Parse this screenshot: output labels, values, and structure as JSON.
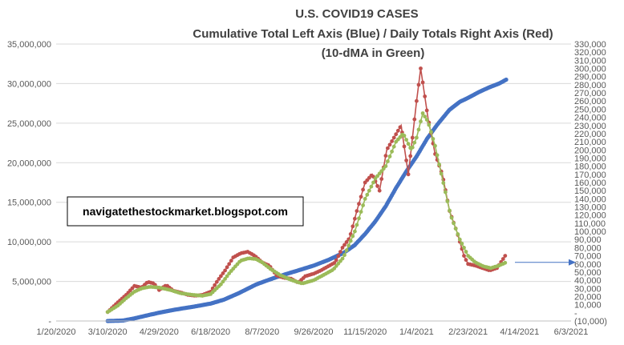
{
  "chart_data": {
    "type": "line",
    "title": "U.S. COVID19 CASES",
    "subtitle": "Cumulative Total Left Axis (Blue) / Daily Totals Right Axis (Red)",
    "subtitle2": "(10-dMA in Green)",
    "annotation": "navigatethestockmarket.blogspot.com",
    "x_ticks": [
      "1/20/2020",
      "3/10/2020",
      "4/29/2020",
      "6/18/2020",
      "8/7/2020",
      "9/26/2020",
      "11/15/2020",
      "1/4/2021",
      "2/23/2021",
      "4/14/2021",
      "6/3/2021"
    ],
    "xlim": [
      "2020-01-20",
      "2021-06-03"
    ],
    "y_left_ticks": [
      "-",
      "5,000,000",
      "10,000,000",
      "15,000,000",
      "20,000,000",
      "25,000,000",
      "30,000,000",
      "35,000,000"
    ],
    "y_left_lim": [
      0,
      35000000
    ],
    "y_right_ticks": [
      "(10,000)",
      "-",
      "10,000",
      "20,000",
      "30,000",
      "40,000",
      "50,000",
      "60,000",
      "70,000",
      "80,000",
      "90,000",
      "100,000",
      "110,000",
      "120,000",
      "130,000",
      "140,000",
      "150,000",
      "160,000",
      "170,000",
      "180,000",
      "190,000",
      "200,000",
      "210,000",
      "220,000",
      "230,000",
      "240,000",
      "250,000",
      "260,000",
      "270,000",
      "280,000",
      "290,000",
      "300,000",
      "310,000",
      "320,000",
      "330,000"
    ],
    "y_right_lim": [
      -10000,
      330000
    ],
    "arrow_level_right_axis": 62000,
    "colors": {
      "cumulative": "#4472C4",
      "daily": "#C0504D",
      "ma10": "#9BBB59",
      "grid": "#D9D9D9",
      "arrow": "#4472C4"
    },
    "series": [
      {
        "name": "Cumulative Total",
        "axis": "left",
        "color": "#4472C4",
        "style": "line-markers",
        "points": [
          [
            "2020-03-10",
            0
          ],
          [
            "2020-03-25",
            60000
          ],
          [
            "2020-04-05",
            330000
          ],
          [
            "2020-04-15",
            640000
          ],
          [
            "2020-04-29",
            1050000
          ],
          [
            "2020-05-15",
            1450000
          ],
          [
            "2020-06-01",
            1800000
          ],
          [
            "2020-06-18",
            2200000
          ],
          [
            "2020-07-01",
            2700000
          ],
          [
            "2020-07-15",
            3500000
          ],
          [
            "2020-08-01",
            4600000
          ],
          [
            "2020-08-07",
            4900000
          ],
          [
            "2020-08-20",
            5500000
          ],
          [
            "2020-09-01",
            6000000
          ],
          [
            "2020-09-15",
            6550000
          ],
          [
            "2020-09-26",
            7000000
          ],
          [
            "2020-10-10",
            7700000
          ],
          [
            "2020-10-25",
            8600000
          ],
          [
            "2020-11-05",
            9600000
          ],
          [
            "2020-11-15",
            11000000
          ],
          [
            "2020-11-25",
            12600000
          ],
          [
            "2020-12-05",
            14500000
          ],
          [
            "2020-12-15",
            16800000
          ],
          [
            "2020-12-25",
            18900000
          ],
          [
            "2021-01-04",
            20800000
          ],
          [
            "2021-01-14",
            23000000
          ],
          [
            "2021-01-24",
            24800000
          ],
          [
            "2021-02-05",
            26700000
          ],
          [
            "2021-02-15",
            27700000
          ],
          [
            "2021-02-23",
            28200000
          ],
          [
            "2021-03-05",
            28900000
          ],
          [
            "2021-03-15",
            29500000
          ],
          [
            "2021-03-25",
            30000000
          ],
          [
            "2021-04-01",
            30500000
          ]
        ]
      },
      {
        "name": "Daily Totals",
        "axis": "right",
        "color": "#C0504D",
        "style": "line-markers",
        "points": [
          [
            "2020-03-10",
            1000
          ],
          [
            "2020-03-20",
            13000
          ],
          [
            "2020-03-28",
            22000
          ],
          [
            "2020-04-05",
            33000
          ],
          [
            "2020-04-12",
            31000
          ],
          [
            "2020-04-18",
            38000
          ],
          [
            "2020-04-24",
            36000
          ],
          [
            "2020-04-29",
            28000
          ],
          [
            "2020-05-06",
            34000
          ],
          [
            "2020-05-13",
            27000
          ],
          [
            "2020-05-20",
            25000
          ],
          [
            "2020-05-27",
            22000
          ],
          [
            "2020-06-03",
            21000
          ],
          [
            "2020-06-10",
            22000
          ],
          [
            "2020-06-18",
            26000
          ],
          [
            "2020-06-25",
            40000
          ],
          [
            "2020-07-02",
            52000
          ],
          [
            "2020-07-10",
            68000
          ],
          [
            "2020-07-17",
            73000
          ],
          [
            "2020-07-24",
            75000
          ],
          [
            "2020-07-31",
            70000
          ],
          [
            "2020-08-07",
            62000
          ],
          [
            "2020-08-14",
            58000
          ],
          [
            "2020-08-21",
            46000
          ],
          [
            "2020-08-28",
            43000
          ],
          [
            "2020-09-04",
            42000
          ],
          [
            "2020-09-11",
            37000
          ],
          [
            "2020-09-18",
            45000
          ],
          [
            "2020-09-26",
            48000
          ],
          [
            "2020-10-03",
            52000
          ],
          [
            "2020-10-10",
            57000
          ],
          [
            "2020-10-17",
            62000
          ],
          [
            "2020-10-24",
            80000
          ],
          [
            "2020-10-31",
            92000
          ],
          [
            "2020-11-07",
            125000
          ],
          [
            "2020-11-15",
            160000
          ],
          [
            "2020-11-22",
            170000
          ],
          [
            "2020-11-29",
            150000
          ],
          [
            "2020-12-06",
            200000
          ],
          [
            "2020-12-13",
            215000
          ],
          [
            "2020-12-20",
            230000
          ],
          [
            "2020-12-27",
            170000
          ],
          [
            "2021-01-04",
            260000
          ],
          [
            "2021-01-08",
            300000
          ],
          [
            "2021-01-15",
            240000
          ],
          [
            "2021-01-22",
            195000
          ],
          [
            "2021-01-29",
            170000
          ],
          [
            "2021-02-05",
            125000
          ],
          [
            "2021-02-12",
            100000
          ],
          [
            "2021-02-19",
            70000
          ],
          [
            "2021-02-23",
            60000
          ],
          [
            "2021-03-02",
            58000
          ],
          [
            "2021-03-09",
            55000
          ],
          [
            "2021-03-16",
            52000
          ],
          [
            "2021-03-23",
            55000
          ],
          [
            "2021-03-30",
            68000
          ],
          [
            "2021-04-01",
            72000
          ]
        ]
      },
      {
        "name": "10-dMA",
        "axis": "right",
        "color": "#9BBB59",
        "style": "line-markers",
        "points": [
          [
            "2020-03-10",
            1000
          ],
          [
            "2020-03-20",
            9000
          ],
          [
            "2020-03-28",
            18000
          ],
          [
            "2020-04-05",
            26000
          ],
          [
            "2020-04-12",
            30000
          ],
          [
            "2020-04-20",
            32000
          ],
          [
            "2020-04-29",
            31000
          ],
          [
            "2020-05-10",
            28000
          ],
          [
            "2020-05-20",
            24000
          ],
          [
            "2020-06-01",
            22000
          ],
          [
            "2020-06-10",
            21000
          ],
          [
            "2020-06-18",
            23000
          ],
          [
            "2020-06-28",
            35000
          ],
          [
            "2020-07-07",
            50000
          ],
          [
            "2020-07-17",
            64000
          ],
          [
            "2020-07-25",
            67000
          ],
          [
            "2020-08-01",
            66000
          ],
          [
            "2020-08-07",
            62000
          ],
          [
            "2020-08-15",
            54000
          ],
          [
            "2020-08-25",
            46000
          ],
          [
            "2020-09-05",
            40000
          ],
          [
            "2020-09-15",
            36000
          ],
          [
            "2020-09-26",
            40000
          ],
          [
            "2020-10-05",
            46000
          ],
          [
            "2020-10-15",
            53000
          ],
          [
            "2020-10-25",
            68000
          ],
          [
            "2020-11-05",
            100000
          ],
          [
            "2020-11-15",
            140000
          ],
          [
            "2020-11-25",
            165000
          ],
          [
            "2020-12-05",
            180000
          ],
          [
            "2020-12-15",
            210000
          ],
          [
            "2020-12-22",
            220000
          ],
          [
            "2020-12-30",
            200000
          ],
          [
            "2021-01-04",
            215000
          ],
          [
            "2021-01-10",
            245000
          ],
          [
            "2021-01-15",
            235000
          ],
          [
            "2021-01-22",
            205000
          ],
          [
            "2021-01-29",
            165000
          ],
          [
            "2021-02-06",
            120000
          ],
          [
            "2021-02-15",
            90000
          ],
          [
            "2021-02-23",
            70000
          ],
          [
            "2021-03-02",
            62000
          ],
          [
            "2021-03-10",
            57000
          ],
          [
            "2021-03-17",
            55000
          ],
          [
            "2021-03-25",
            58000
          ],
          [
            "2021-04-01",
            62000
          ]
        ]
      }
    ]
  }
}
